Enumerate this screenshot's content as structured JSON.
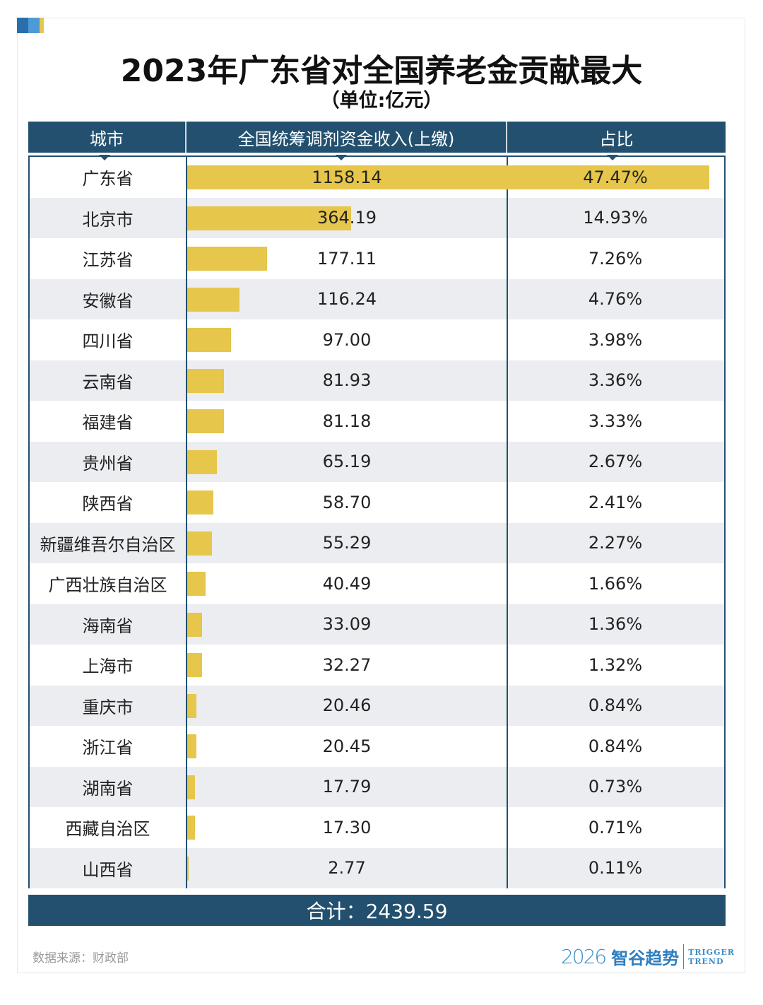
{
  "colors": {
    "header": "#23506f",
    "bar": "#e6c64b",
    "stripe": "#ebedf0",
    "corner": [
      "#2a6fad",
      "#4d9ad6",
      "#e6c64b"
    ]
  },
  "title": "2023年广东省对全国养老金贡献最大",
  "unit": "（单位:亿元）",
  "chart_data": {
    "type": "table",
    "columns": [
      "城市",
      "全国统筹调剂资金收入(上缴)",
      "占比"
    ],
    "rows": [
      {
        "city": "广东省",
        "value": "1158.14",
        "share": "47.47%"
      },
      {
        "city": "北京市",
        "value": "364.19",
        "share": "14.93%"
      },
      {
        "city": "江苏省",
        "value": "177.11",
        "share": "7.26%"
      },
      {
        "city": "安徽省",
        "value": "116.24",
        "share": "4.76%"
      },
      {
        "city": "四川省",
        "value": "97.00",
        "share": "3.98%"
      },
      {
        "city": "云南省",
        "value": "81.93",
        "share": "3.36%"
      },
      {
        "city": "福建省",
        "value": "81.18",
        "share": "3.33%"
      },
      {
        "city": "贵州省",
        "value": "65.19",
        "share": "2.67%"
      },
      {
        "city": "陕西省",
        "value": "58.70",
        "share": "2.41%"
      },
      {
        "city": "新疆维吾尔自治区",
        "value": "55.29",
        "share": "2.27%"
      },
      {
        "city": "广西壮族自治区",
        "value": "40.49",
        "share": "1.66%"
      },
      {
        "city": "海南省",
        "value": "33.09",
        "share": "1.36%"
      },
      {
        "city": "上海市",
        "value": "32.27",
        "share": "1.32%"
      },
      {
        "city": "重庆市",
        "value": "20.46",
        "share": "0.84%"
      },
      {
        "city": "浙江省",
        "value": "20.45",
        "share": "0.84%"
      },
      {
        "city": "湖南省",
        "value": "17.79",
        "share": "0.73%"
      },
      {
        "city": "西藏自治区",
        "value": "17.30",
        "share": "0.71%"
      },
      {
        "city": "山西省",
        "value": "2.77",
        "share": "0.11%"
      }
    ],
    "max_value": 1158.14
  },
  "total": "合计：2439.59",
  "source": "数据来源：财政部",
  "logo": {
    "year": "2026",
    "name": "智谷趋势",
    "en1": "TRIGGER",
    "en2": "TREND"
  }
}
